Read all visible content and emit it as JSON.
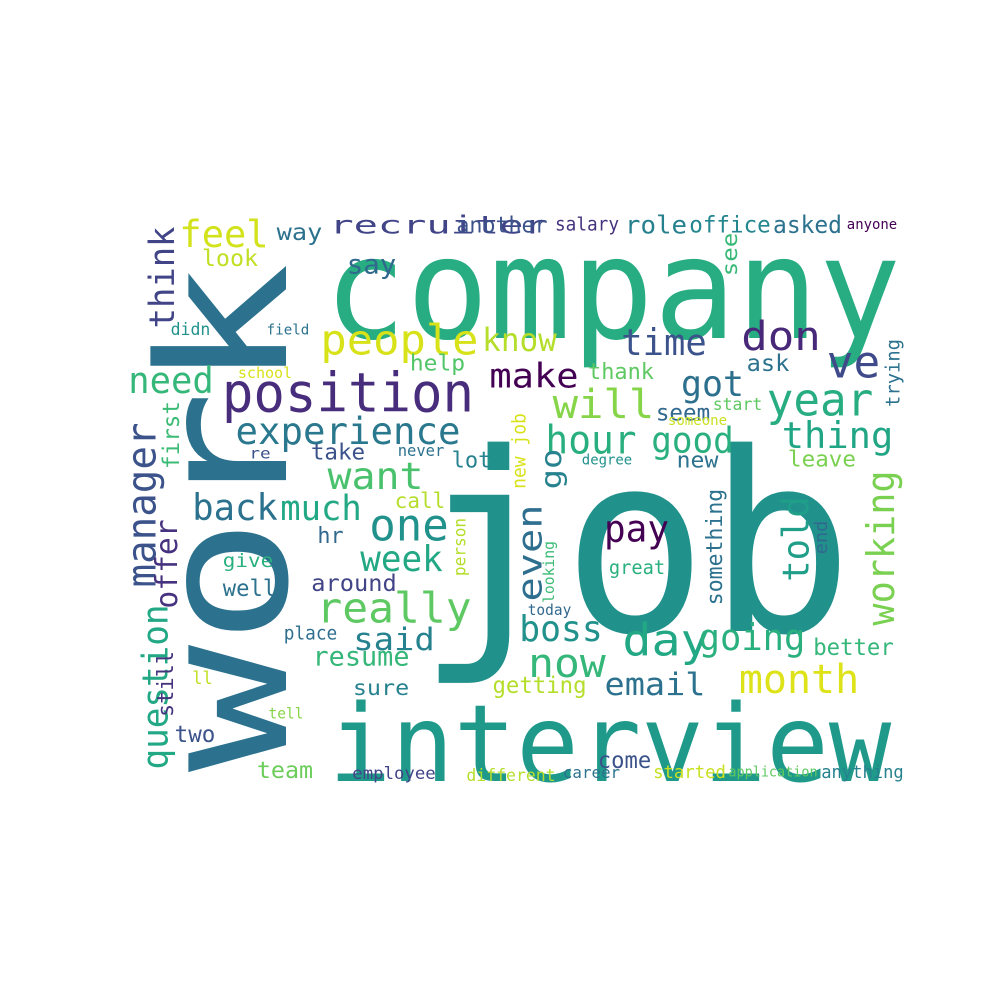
{
  "word_cloud": {
    "words": [
      {
        "text": "job",
        "color": "#21918c"
      },
      {
        "text": "work",
        "color": "#2c728e"
      },
      {
        "text": "company",
        "color": "#27ad81"
      },
      {
        "text": "interview",
        "color": "#1f9a8a"
      },
      {
        "text": "position",
        "color": "#472d7b"
      },
      {
        "text": "time",
        "color": "#3b528b"
      },
      {
        "text": "ve",
        "color": "#3e4a89"
      },
      {
        "text": "year",
        "color": "#27ad81"
      },
      {
        "text": "people",
        "color": "#d8e219"
      },
      {
        "text": "know",
        "color": "#b5de2b"
      },
      {
        "text": "experience",
        "color": "#2a788e"
      },
      {
        "text": "feel",
        "color": "#d2e21b"
      },
      {
        "text": "think",
        "color": "#414487"
      },
      {
        "text": "need",
        "color": "#35b779"
      },
      {
        "text": "don",
        "color": "#482878"
      },
      {
        "text": "will",
        "color": "#86d549"
      },
      {
        "text": "got",
        "color": "#2d708e"
      },
      {
        "text": "make",
        "color": "#440154"
      },
      {
        "text": "hour",
        "color": "#29af7f"
      },
      {
        "text": "thing",
        "color": "#21a685"
      },
      {
        "text": "good",
        "color": "#2ab07f"
      },
      {
        "text": "want",
        "color": "#4ac16d"
      },
      {
        "text": "one",
        "color": "#21918c"
      },
      {
        "text": "back",
        "color": "#2c728e"
      },
      {
        "text": "much",
        "color": "#22a884"
      },
      {
        "text": "week",
        "color": "#22a884"
      },
      {
        "text": "really",
        "color": "#5ec962"
      },
      {
        "text": "said",
        "color": "#26828e"
      },
      {
        "text": "pay",
        "color": "#440154"
      },
      {
        "text": "told",
        "color": "#1f9e89"
      },
      {
        "text": "working",
        "color": "#7ad151"
      },
      {
        "text": "manager",
        "color": "#3b528b"
      },
      {
        "text": "offer",
        "color": "#46327e"
      },
      {
        "text": "question",
        "color": "#22a884"
      },
      {
        "text": "day",
        "color": "#22a884"
      },
      {
        "text": "going",
        "color": "#2ab07f"
      },
      {
        "text": "now",
        "color": "#35b779"
      },
      {
        "text": "boss",
        "color": "#21918c"
      },
      {
        "text": "email",
        "color": "#2c728e"
      },
      {
        "text": "month",
        "color": "#dde318"
      },
      {
        "text": "resume",
        "color": "#35b779"
      },
      {
        "text": "even",
        "color": "#2e6e8e"
      },
      {
        "text": "go",
        "color": "#26828e"
      },
      {
        "text": "recruiter",
        "color": "#414487"
      },
      {
        "text": "another",
        "color": "#3b528b"
      },
      {
        "text": "salary",
        "color": "#46337e"
      },
      {
        "text": "role",
        "color": "#27808e"
      },
      {
        "text": "office",
        "color": "#24868e"
      },
      {
        "text": "asked",
        "color": "#2c728e"
      },
      {
        "text": "anyone",
        "color": "#440154"
      },
      {
        "text": "way",
        "color": "#2c728e"
      },
      {
        "text": "look",
        "color": "#c2df23"
      },
      {
        "text": "say",
        "color": "#31688e"
      },
      {
        "text": "see",
        "color": "#38b977"
      },
      {
        "text": "help",
        "color": "#52c569"
      },
      {
        "text": "thank",
        "color": "#5ec962"
      },
      {
        "text": "ask",
        "color": "#2c728e"
      },
      {
        "text": "trying",
        "color": "#2c728e"
      },
      {
        "text": "seem",
        "color": "#31688e"
      },
      {
        "text": "start",
        "color": "#5ec962"
      },
      {
        "text": "someone",
        "color": "#cae11f"
      },
      {
        "text": "degree",
        "color": "#21918c"
      },
      {
        "text": "new",
        "color": "#2c728e"
      },
      {
        "text": "leave",
        "color": "#7ad151"
      },
      {
        "text": "first",
        "color": "#3bbb75"
      },
      {
        "text": "take",
        "color": "#3b528b"
      },
      {
        "text": "lot",
        "color": "#26828e"
      },
      {
        "text": "new job",
        "color": "#d8e219"
      },
      {
        "text": "didn",
        "color": "#21918c"
      },
      {
        "text": "field",
        "color": "#2c728e"
      },
      {
        "text": "school",
        "color": "#d8e219"
      },
      {
        "text": "re",
        "color": "#3b528b"
      },
      {
        "text": "never",
        "color": "#2c728e"
      },
      {
        "text": "call",
        "color": "#b5de2b"
      },
      {
        "text": "hr",
        "color": "#31688e"
      },
      {
        "text": "person",
        "color": "#b5de2b"
      },
      {
        "text": "looking",
        "color": "#3bbb75"
      },
      {
        "text": "something",
        "color": "#2c728e"
      },
      {
        "text": "end",
        "color": "#31688e"
      },
      {
        "text": "give",
        "color": "#2ab07f"
      },
      {
        "text": "great",
        "color": "#2ab07f"
      },
      {
        "text": "well",
        "color": "#2c728e"
      },
      {
        "text": "around",
        "color": "#414487"
      },
      {
        "text": "today",
        "color": "#31688e"
      },
      {
        "text": "place",
        "color": "#2e6e8e"
      },
      {
        "text": "better",
        "color": "#35b779"
      },
      {
        "text": "still",
        "color": "#46337e"
      },
      {
        "text": "sure",
        "color": "#26828e"
      },
      {
        "text": "getting",
        "color": "#b5de2b"
      },
      {
        "text": "ll",
        "color": "#c2df23"
      },
      {
        "text": "two",
        "color": "#3b528b"
      },
      {
        "text": "tell",
        "color": "#86d549"
      },
      {
        "text": "team",
        "color": "#6ccd5a"
      },
      {
        "text": "employee",
        "color": "#414487"
      },
      {
        "text": "different",
        "color": "#b5de2b"
      },
      {
        "text": "career",
        "color": "#2c728e"
      },
      {
        "text": "come",
        "color": "#3b528b"
      },
      {
        "text": "started",
        "color": "#c8e020"
      },
      {
        "text": "application",
        "color": "#5ec962"
      },
      {
        "text": "anything",
        "color": "#26828e"
      }
    ]
  }
}
